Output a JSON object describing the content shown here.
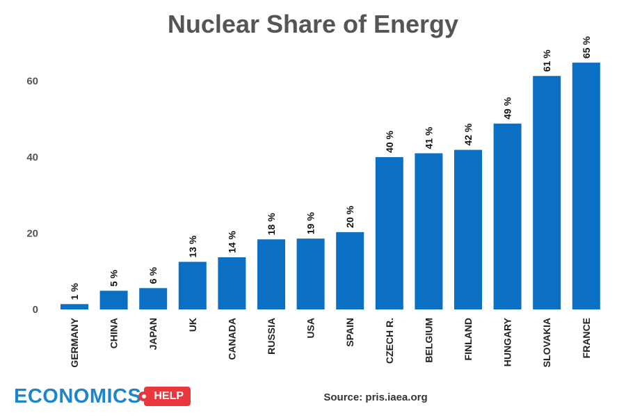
{
  "chart_data": {
    "type": "bar",
    "title": "Nuclear Share of Energy",
    "categories": [
      "GERMANY",
      "CHINA",
      "JAPAN",
      "UK",
      "CANADA",
      "RUSSIA",
      "USA",
      "SPAIN",
      "CZECH R.",
      "BELGIUM",
      "FINLAND",
      "HUNGARY",
      "SLOVAKIA",
      "FRANCE"
    ],
    "values": [
      1.4,
      4.9,
      5.6,
      12.5,
      13.7,
      18.4,
      18.6,
      20.3,
      40.0,
      41.0,
      41.9,
      48.8,
      61.3,
      64.8
    ],
    "data_labels": [
      "1 %",
      "5 %",
      "6 %",
      "13 %",
      "14 %",
      "18 %",
      "19 %",
      "20 %",
      "40 %",
      "41 %",
      "42 %",
      "49 %",
      "61 %",
      "65 %"
    ],
    "yticks": [
      "0",
      "20",
      "40",
      "60"
    ],
    "ylim": [
      0,
      65
    ],
    "grid": false,
    "legend": "none",
    "bar_color": "#0b6fc4",
    "source": "Source: pris.iaea.org"
  },
  "logo": {
    "word": "ECONOMICS",
    "badge": "HELP"
  }
}
